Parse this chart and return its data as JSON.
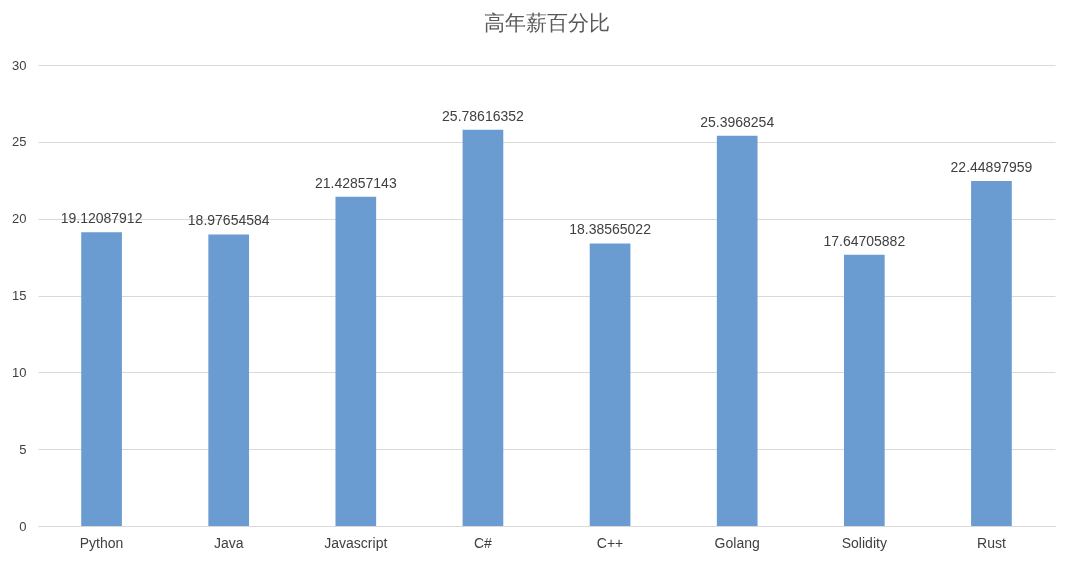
{
  "chart_data": {
    "type": "bar",
    "title": "高年薪百分比",
    "categories": [
      "Python",
      "Java",
      "Javascript",
      "C#",
      "C++",
      "Golang",
      "Solidity",
      "Rust"
    ],
    "values": [
      19.12087912,
      18.97654584,
      21.42857143,
      25.78616352,
      18.38565022,
      25.3968254,
      17.64705882,
      22.44897959
    ],
    "color": "#6a9bd1",
    "ylim": [
      0,
      30
    ],
    "yticks": [
      0,
      5,
      10,
      15,
      20,
      25,
      30
    ],
    "grid": "y",
    "data_labels": true
  }
}
